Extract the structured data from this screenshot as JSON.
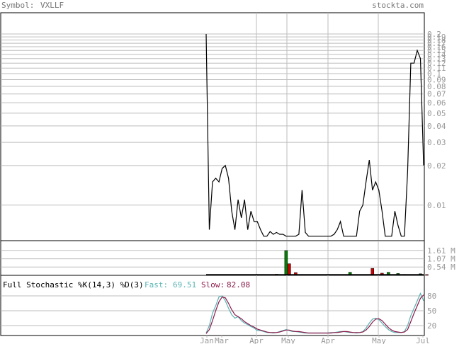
{
  "header": {
    "symbol_label": "Symbol:",
    "symbol": "VXLLF",
    "site": "stockta.com"
  },
  "colors": {
    "grid": "#bdbdbd",
    "frame": "#000000",
    "price_line": "#000000",
    "vol_up": "#008000",
    "vol_down": "#cc0000",
    "fast_line": "#5bb3b3",
    "slow_line": "#8b1a4a",
    "header_text": "#777777"
  },
  "chart_data": [
    {
      "type": "line",
      "name": "price",
      "scale": "log",
      "ylim": [
        0.006,
        0.2
      ],
      "y_ticks": [
        0.2,
        0.19,
        0.18,
        0.17,
        0.16,
        0.15,
        0.14,
        0.13,
        0.12,
        0.11,
        0.1,
        0.09,
        0.08,
        0.07,
        0.06,
        0.05,
        0.04,
        0.03,
        0.02,
        0.01
      ],
      "x_labels": [
        "Jan",
        "Mar",
        "Apr",
        "May",
        "Apr",
        "May",
        "Jul"
      ],
      "values": [
        0.2,
        0.0065,
        0.015,
        0.016,
        0.015,
        0.019,
        0.02,
        0.016,
        0.009,
        0.0065,
        0.011,
        0.008,
        0.011,
        0.0065,
        0.009,
        0.0075,
        0.0075,
        0.0065,
        0.0058,
        0.0058,
        0.0063,
        0.006,
        0.0062,
        0.006,
        0.006,
        0.0058,
        0.0058,
        0.0058,
        0.0058,
        0.006,
        0.013,
        0.0062,
        0.0058,
        0.0058,
        0.0058,
        0.0058,
        0.0058,
        0.0058,
        0.0058,
        0.0058,
        0.006,
        0.0065,
        0.0075,
        0.0058,
        0.0058,
        0.0058,
        0.0058,
        0.0058,
        0.009,
        0.01,
        0.015,
        0.022,
        0.013,
        0.015,
        0.013,
        0.009,
        0.0058,
        0.0058,
        0.0058,
        0.009,
        0.007,
        0.0058,
        0.0058,
        0.018,
        0.12,
        0.12,
        0.15,
        0.13,
        0.02
      ]
    },
    {
      "type": "bar",
      "name": "volume",
      "unit": "M",
      "ylim": [
        0,
        2.15
      ],
      "y_ticks": [
        1.61,
        1.07,
        0.54
      ],
      "y_tick_labels": [
        "1.61 M",
        "1.07 M",
        "0.54 M"
      ],
      "bars": [
        {
          "x": 6,
          "v": 0.05,
          "up": true
        },
        {
          "x": 12,
          "v": 0.03,
          "up": false
        },
        {
          "x": 16,
          "v": 0.06,
          "up": true
        },
        {
          "x": 22,
          "v": 0.07,
          "up": false
        },
        {
          "x": 25,
          "v": 1.6,
          "up": true
        },
        {
          "x": 26,
          "v": 0.75,
          "up": false
        },
        {
          "x": 28,
          "v": 0.18,
          "up": false
        },
        {
          "x": 35,
          "v": 0.05,
          "up": true
        },
        {
          "x": 39,
          "v": 0.04,
          "up": false
        },
        {
          "x": 45,
          "v": 0.2,
          "up": true
        },
        {
          "x": 52,
          "v": 0.45,
          "up": false
        },
        {
          "x": 55,
          "v": 0.14,
          "up": false
        },
        {
          "x": 57,
          "v": 0.2,
          "up": true
        },
        {
          "x": 60,
          "v": 0.12,
          "up": true
        },
        {
          "x": 62,
          "v": 0.06,
          "up": false
        },
        {
          "x": 64,
          "v": 0.05,
          "up": true
        },
        {
          "x": 67,
          "v": 0.1,
          "up": true
        },
        {
          "x": 69,
          "v": 0.05,
          "up": false
        }
      ]
    },
    {
      "type": "line",
      "name": "stochastic",
      "title": "Full Stochastic %K(14,3) %D(3)",
      "fast_label": "Fast:",
      "fast_value": "69.51",
      "slow_label": "Slow:",
      "slow_value": "82.08",
      "ylim": [
        0,
        100
      ],
      "y_ticks": [
        80,
        50,
        20
      ],
      "series": [
        {
          "name": "Fast",
          "values": [
            5,
            20,
            45,
            60,
            78,
            80,
            70,
            55,
            42,
            35,
            38,
            30,
            25,
            22,
            18,
            15,
            10,
            10,
            8,
            6,
            6,
            5,
            6,
            8,
            10,
            12,
            10,
            8,
            8,
            7,
            6,
            5,
            5,
            5,
            5,
            5,
            5,
            5,
            5,
            6,
            6,
            7,
            8,
            8,
            7,
            6,
            6,
            5,
            6,
            8,
            15,
            25,
            33,
            35,
            32,
            25,
            18,
            12,
            8,
            6,
            6,
            6,
            8,
            20,
            40,
            55,
            70,
            85,
            70
          ]
        },
        {
          "name": "Slow",
          "values": [
            4,
            12,
            30,
            50,
            68,
            78,
            76,
            65,
            52,
            42,
            38,
            34,
            28,
            24,
            20,
            17,
            13,
            11,
            9,
            7,
            6,
            6,
            6,
            7,
            9,
            11,
            11,
            9,
            8,
            8,
            7,
            6,
            5,
            5,
            5,
            5,
            5,
            5,
            5,
            5,
            6,
            6,
            7,
            8,
            8,
            7,
            6,
            6,
            6,
            7,
            11,
            18,
            27,
            33,
            34,
            30,
            23,
            16,
            11,
            8,
            7,
            6,
            7,
            12,
            28,
            45,
            60,
            75,
            82
          ]
        }
      ]
    }
  ]
}
